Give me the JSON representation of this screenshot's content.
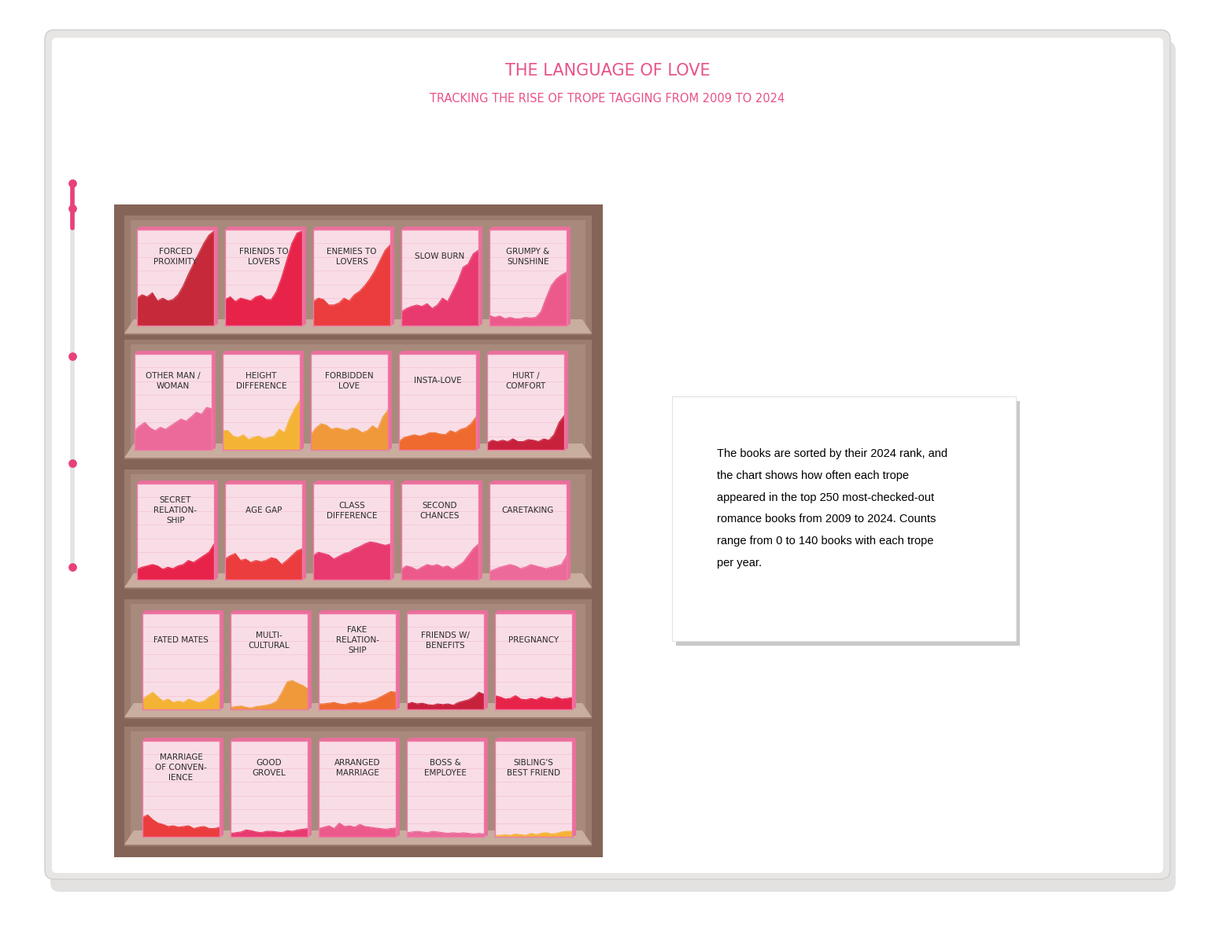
{
  "chart_data": {
    "type": "area",
    "title": "THE LANGUAGE OF LOVE",
    "subtitle": "TRACKING THE RISE OF TROPE TAGGING FROM 2009 TO 2024",
    "annotation": "The books are sorted by their 2024 rank, and\nthe chart shows how often each trope\nappeared in the top 250 most-checked-out\nromance books from 2009 to 2024. Counts\nrange from 0 to 140 books with each trope\nper year.",
    "x": [
      2009,
      2010,
      2011,
      2012,
      2013,
      2014,
      2015,
      2016,
      2017,
      2018,
      2019,
      2020,
      2021,
      2022,
      2023,
      2024
    ],
    "xlim": [
      2009,
      2024
    ],
    "ylim": [
      0,
      140
    ],
    "yticks": [
      0,
      20,
      40,
      60,
      80,
      100,
      120,
      140
    ],
    "grid": true,
    "tick_labels": false,
    "series": [
      {
        "name": "FORCED\nPROXIMITY",
        "color": "#c62a3a",
        "values": [
          40,
          45,
          42,
          48,
          36,
          40,
          36,
          38,
          45,
          58,
          75,
          90,
          105,
          120,
          132,
          138
        ]
      },
      {
        "name": "FRIENDS TO\nLOVERS",
        "color": "#e8234a",
        "values": [
          38,
          42,
          35,
          40,
          38,
          36,
          42,
          44,
          38,
          38,
          50,
          70,
          95,
          120,
          135,
          138
        ]
      },
      {
        "name": "ENEMIES TO\nLOVERS",
        "color": "#eb3d3d",
        "values": [
          35,
          40,
          38,
          30,
          30,
          33,
          40,
          36,
          45,
          50,
          58,
          68,
          80,
          95,
          110,
          118
        ]
      },
      {
        "name": "SLOW BURN",
        "color": "#e83a6e",
        "values": [
          20,
          25,
          28,
          30,
          28,
          32,
          25,
          30,
          40,
          35,
          50,
          65,
          85,
          90,
          105,
          110
        ]
      },
      {
        "name": "GRUMPY &\nSUNSHINE",
        "color": "#ec5a8c",
        "values": [
          15,
          12,
          14,
          10,
          12,
          10,
          10,
          12,
          11,
          12,
          20,
          40,
          58,
          68,
          74,
          78
        ]
      },
      {
        "name": "OTHER MAN /\nWOMAN",
        "color": "#ec6a9a",
        "values": [
          28,
          35,
          40,
          32,
          28,
          33,
          30,
          35,
          40,
          45,
          42,
          48,
          55,
          52,
          62,
          60
        ]
      },
      {
        "name": "HEIGHT\nDIFFERENCE",
        "color": "#f5b335",
        "values": [
          28,
          28,
          20,
          18,
          22,
          15,
          18,
          20,
          16,
          18,
          20,
          30,
          25,
          45,
          60,
          72
        ]
      },
      {
        "name": "FORBIDDEN\nLOVE",
        "color": "#f0993a",
        "values": [
          22,
          32,
          38,
          36,
          30,
          32,
          30,
          28,
          32,
          30,
          25,
          28,
          35,
          30,
          48,
          58
        ]
      },
      {
        "name": "INSTA-LOVE",
        "color": "#ef6a2e",
        "values": [
          12,
          18,
          20,
          22,
          20,
          22,
          25,
          25,
          23,
          22,
          28,
          25,
          30,
          32,
          38,
          48
        ]
      },
      {
        "name": "HURT /\nCOMFORT",
        "color": "#c8213c",
        "values": [
          10,
          14,
          12,
          14,
          12,
          16,
          12,
          12,
          15,
          14,
          12,
          16,
          14,
          22,
          40,
          50
        ]
      },
      {
        "name": "SECRET\nRELATION-\nSHIP",
        "color": "#e8234a",
        "values": [
          15,
          18,
          20,
          22,
          20,
          15,
          18,
          16,
          20,
          22,
          28,
          25,
          30,
          35,
          40,
          52
        ]
      },
      {
        "name": "AGE GAP",
        "color": "#eb3d3d",
        "values": [
          30,
          35,
          38,
          28,
          30,
          25,
          28,
          26,
          28,
          32,
          30,
          22,
          28,
          35,
          42,
          45
        ]
      },
      {
        "name": "CLASS\nDIFFERENCE",
        "color": "#e83a6e",
        "values": [
          35,
          40,
          38,
          36,
          30,
          34,
          38,
          40,
          45,
          48,
          52,
          55,
          54,
          52,
          50,
          52
        ]
      },
      {
        "name": "SECOND\nCHANCES",
        "color": "#ec5a8c",
        "values": [
          15,
          20,
          18,
          14,
          18,
          22,
          20,
          22,
          18,
          20,
          15,
          20,
          25,
          35,
          45,
          52
        ]
      },
      {
        "name": "CARETAKING",
        "color": "#ec6a9a",
        "values": [
          12,
          15,
          18,
          20,
          22,
          20,
          16,
          18,
          22,
          20,
          18,
          16,
          18,
          20,
          22,
          35
        ]
      },
      {
        "name": "FATED MATES",
        "color": "#f5b335",
        "values": [
          15,
          20,
          25,
          18,
          12,
          15,
          10,
          12,
          10,
          15,
          12,
          10,
          12,
          18,
          22,
          30
        ]
      },
      {
        "name": "MULTI-\nCULTURAL",
        "color": "#f0993a",
        "values": [
          3,
          4,
          5,
          3,
          2,
          4,
          5,
          6,
          8,
          12,
          25,
          40,
          42,
          38,
          35,
          30
        ]
      },
      {
        "name": "FAKE\nRELATION-\nSHIP",
        "color": "#ef6a2e",
        "values": [
          8,
          8,
          9,
          10,
          8,
          7,
          9,
          10,
          9,
          10,
          12,
          14,
          18,
          22,
          26,
          25
        ]
      },
      {
        "name": "FRIENDS W/\nBENEFITS",
        "color": "#c8213c",
        "values": [
          8,
          10,
          8,
          9,
          7,
          6,
          8,
          7,
          8,
          6,
          10,
          12,
          14,
          18,
          25,
          22
        ]
      },
      {
        "name": "PREGNANCY",
        "color": "#e8234a",
        "values": [
          20,
          18,
          15,
          16,
          20,
          15,
          14,
          16,
          14,
          18,
          16,
          15,
          18,
          15,
          16,
          17
        ]
      },
      {
        "name": "MARRIAGE\nOF CONVEN-\nIENCE",
        "color": "#eb3d3d",
        "values": [
          28,
          32,
          25,
          20,
          18,
          15,
          16,
          14,
          15,
          16,
          12,
          14,
          15,
          12,
          12,
          14
        ]
      },
      {
        "name": "GOOD\nGROVEL",
        "color": "#e83a6e",
        "values": [
          5,
          6,
          7,
          10,
          9,
          7,
          6,
          8,
          8,
          7,
          6,
          9,
          8,
          10,
          11,
          12
        ]
      },
      {
        "name": "ARRANGED\nMARRIAGE",
        "color": "#ec5a8c",
        "values": [
          12,
          14,
          16,
          12,
          20,
          15,
          16,
          14,
          18,
          15,
          14,
          13,
          12,
          11,
          12,
          13
        ]
      },
      {
        "name": "BOSS &\nEMPLOYEE",
        "color": "#ec6a9a",
        "values": [
          6,
          7,
          8,
          7,
          6,
          8,
          7,
          6,
          5,
          6,
          5,
          6,
          5,
          4,
          5,
          4
        ]
      },
      {
        "name": "SIBLING'S\nBEST FRIEND",
        "color": "#f5b335",
        "values": [
          2,
          2,
          3,
          2,
          4,
          3,
          2,
          5,
          3,
          5,
          6,
          4,
          5,
          7,
          8,
          8
        ]
      }
    ]
  }
}
